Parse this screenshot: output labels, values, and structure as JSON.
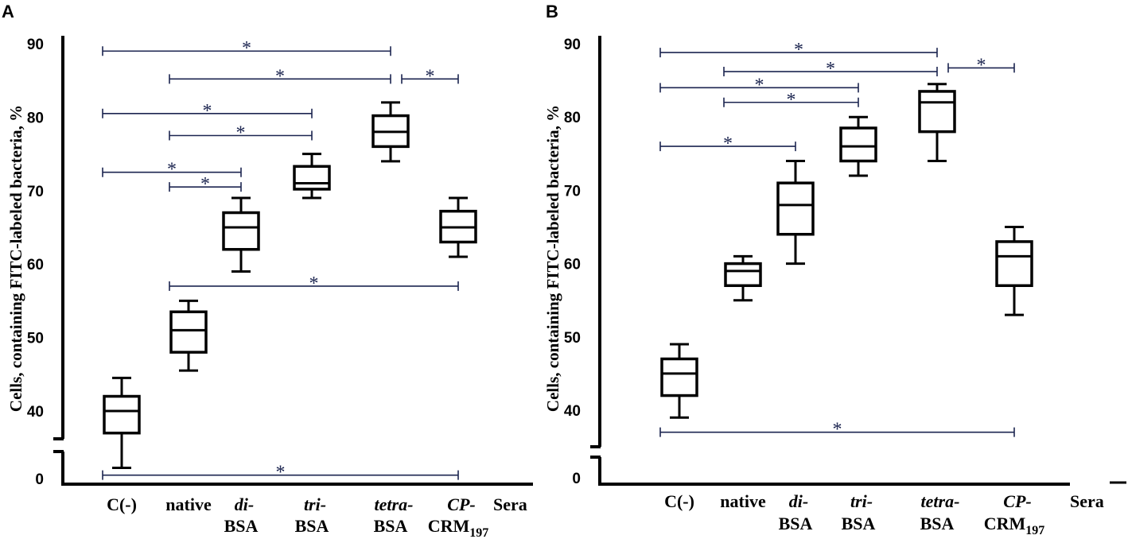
{
  "chart_data": [
    {
      "panel_label": "A",
      "type": "boxplot",
      "ylabel": "Cells, containing FITC-labeled bacteria, %",
      "xlabel": "Sera",
      "y_ticks": [
        "0",
        "40",
        "50",
        "60",
        "70",
        "80",
        "90"
      ],
      "axis_break": "between 0 and 40",
      "categories": [
        {
          "line1": "C(-)",
          "line2": "",
          "sub": "",
          "italic": false
        },
        {
          "line1": "native",
          "line2": "",
          "sub": "",
          "italic": false
        },
        {
          "line1": "di-",
          "line2": "BSA",
          "sub": "",
          "italic": true
        },
        {
          "line1": "tri-",
          "line2": "BSA",
          "sub": "",
          "italic": true
        },
        {
          "line1": "tetra-",
          "line2": "BSA",
          "sub": "",
          "italic": true
        },
        {
          "line1": "CP-",
          "line2": "CRM",
          "sub": "197",
          "italic": true
        }
      ],
      "boxes": [
        {
          "min": 34,
          "q1": 37,
          "median": 40,
          "q3": 42,
          "max": 44.5
        },
        {
          "min": 45.5,
          "q1": 48,
          "median": 51,
          "q3": 53.5,
          "max": 55
        },
        {
          "min": 59,
          "q1": 62,
          "median": 65,
          "q3": 67,
          "max": 69
        },
        {
          "min": 69,
          "q1": 70.2,
          "median": 71,
          "q3": 73.3,
          "max": 75
        },
        {
          "min": 74,
          "q1": 76,
          "median": 78,
          "q3": 80.2,
          "max": 82
        },
        {
          "min": 61,
          "q1": 63,
          "median": 65,
          "q3": 67.2,
          "max": 69
        }
      ],
      "significance": [
        {
          "from": 0,
          "to": 4,
          "y": 89,
          "label": "*"
        },
        {
          "from": 1,
          "to": 4,
          "y": 85.2,
          "label": "*"
        },
        {
          "from": 4,
          "to": 5,
          "y": 85.2,
          "label": "*"
        },
        {
          "from": 0,
          "to": 3,
          "y": 80.5,
          "label": "*"
        },
        {
          "from": 1,
          "to": 3,
          "y": 77.5,
          "label": "*"
        },
        {
          "from": 0,
          "to": 2,
          "y": 72.5,
          "label": "*"
        },
        {
          "from": 1,
          "to": 2,
          "y": 70.5,
          "label": "*"
        },
        {
          "from": 1,
          "to": 5,
          "y": 57,
          "label": "*"
        },
        {
          "from": 0,
          "to": 5,
          "y": 33,
          "label": "*"
        }
      ]
    },
    {
      "panel_label": "B",
      "type": "boxplot",
      "ylabel": "Cells, containing FITC-labeled bacteria, %",
      "xlabel": "Sera",
      "y_ticks": [
        "0",
        "40",
        "50",
        "60",
        "70",
        "80",
        "90"
      ],
      "axis_break": "between 0 and 40",
      "categories": [
        {
          "line1": "C(-)",
          "line2": "",
          "sub": "",
          "italic": false
        },
        {
          "line1": "native",
          "line2": "",
          "sub": "",
          "italic": false
        },
        {
          "line1": "di-",
          "line2": "BSA",
          "sub": "",
          "italic": true
        },
        {
          "line1": "tri-",
          "line2": "BSA",
          "sub": "",
          "italic": true
        },
        {
          "line1": "tetra-",
          "line2": "BSA",
          "sub": "",
          "italic": true
        },
        {
          "line1": "CP-",
          "line2": "CRM",
          "sub": "197",
          "italic": true
        }
      ],
      "boxes": [
        {
          "min": 39,
          "q1": 42,
          "median": 45,
          "q3": 47,
          "max": 49
        },
        {
          "min": 55,
          "q1": 57,
          "median": 59,
          "q3": 60,
          "max": 61
        },
        {
          "min": 60,
          "q1": 64,
          "median": 68,
          "q3": 71,
          "max": 74
        },
        {
          "min": 72,
          "q1": 74,
          "median": 76,
          "q3": 78.5,
          "max": 80
        },
        {
          "min": 74,
          "q1": 78,
          "median": 82,
          "q3": 83.5,
          "max": 84.5
        },
        {
          "min": 53,
          "q1": 57,
          "median": 61,
          "q3": 63,
          "max": 65
        }
      ],
      "significance": [
        {
          "from": 0,
          "to": 4,
          "y": 88.8,
          "label": "*"
        },
        {
          "from": 1,
          "to": 4,
          "y": 86.2,
          "label": "*"
        },
        {
          "from": 4,
          "to": 5,
          "y": 86.7,
          "label": "*"
        },
        {
          "from": 0,
          "to": 3,
          "y": 84,
          "label": "*"
        },
        {
          "from": 1,
          "to": 3,
          "y": 82,
          "label": "*"
        },
        {
          "from": 0,
          "to": 2,
          "y": 76,
          "label": "*"
        },
        {
          "from": 0,
          "to": 5,
          "y": 37,
          "label": "*"
        }
      ]
    }
  ]
}
